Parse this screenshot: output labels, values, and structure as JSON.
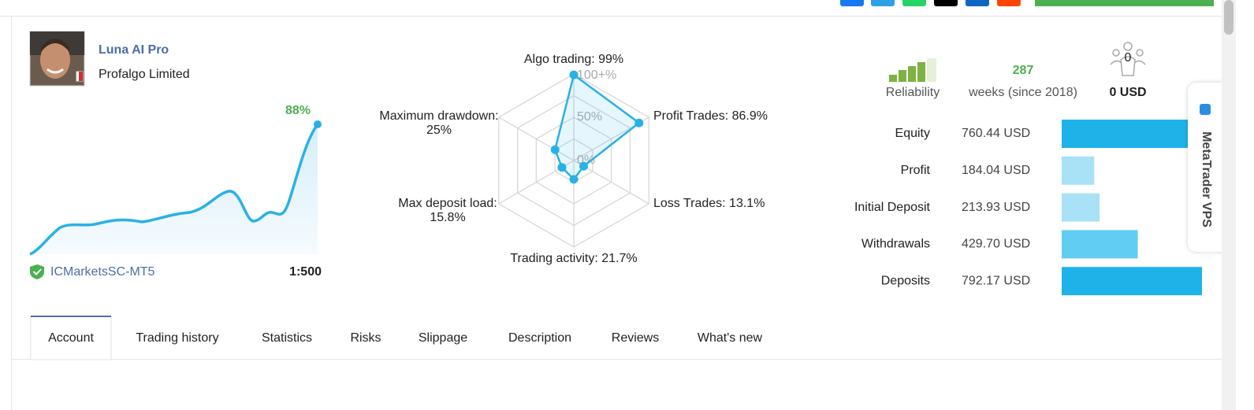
{
  "profile": {
    "name": "Luna AI Pro",
    "provider": "Profalgo Limited",
    "growth": "88%",
    "broker": "ICMarketsSC-MT5",
    "leverage": "1:500"
  },
  "radar": {
    "scale_labels": [
      "100+%",
      "50%",
      "0%"
    ],
    "axes": [
      {
        "label_lines": [
          "Algo trading: 99%"
        ],
        "value": 99
      },
      {
        "label_lines": [
          "Profit Trades: 86.9%"
        ],
        "value": 86.9
      },
      {
        "label_lines": [
          "Loss Trades: 13.1%"
        ],
        "value": 13.1
      },
      {
        "label_lines": [
          "Trading activity: 21.7%"
        ],
        "value": 21.7
      },
      {
        "label_lines": [
          "Max deposit load:",
          "15.8%"
        ],
        "value": 15.8
      },
      {
        "label_lines": [
          "Maximum drawdown:",
          "25%"
        ],
        "value": 25
      }
    ]
  },
  "stats": {
    "reliability": "Reliability",
    "weeks": "287",
    "weeks_label": "weeks (since 2018)",
    "subscribers": "0",
    "subscriber_funds": "0 USD"
  },
  "balances": [
    {
      "name": "Equity",
      "value": 760.44,
      "value_label": "760.44 USD",
      "color": "#1fb2e8"
    },
    {
      "name": "Profit",
      "value": 184.04,
      "value_label": "184.04 USD",
      "color": "#a9e2f6"
    },
    {
      "name": "Initial Deposit",
      "value": 213.93,
      "value_label": "213.93 USD",
      "color": "#a9e2f6"
    },
    {
      "name": "Withdrawals",
      "value": 429.7,
      "value_label": "429.70 USD",
      "color": "#62cdf2"
    },
    {
      "name": "Deposits",
      "value": 792.17,
      "value_label": "792.17 USD",
      "color": "#1fb2e8"
    }
  ],
  "tabs": [
    "Account",
    "Trading history",
    "Statistics",
    "Risks",
    "Slippage",
    "Description",
    "Reviews",
    "What's new"
  ],
  "active_tab": 0,
  "vps_tab": "MetaTrader VPS"
}
